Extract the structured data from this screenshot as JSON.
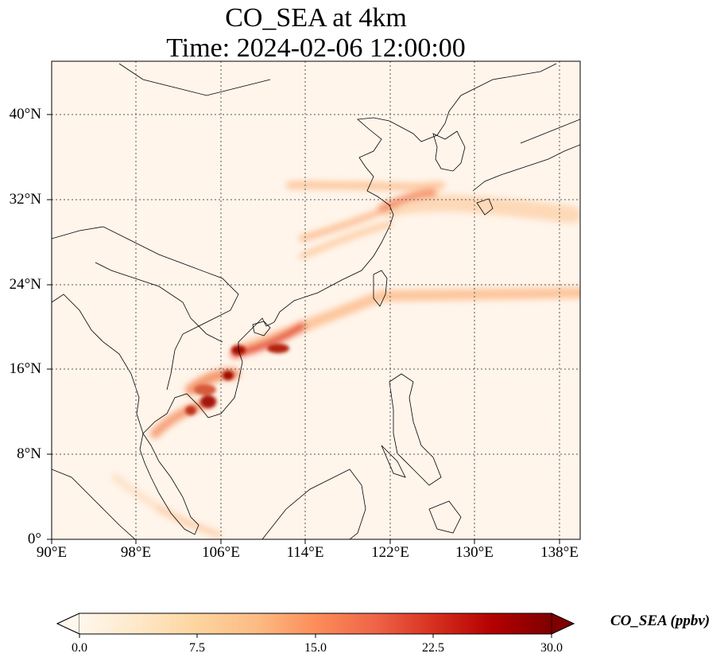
{
  "title": {
    "line1": "CO_SEA at 4km",
    "line2": "Time: 2024-02-06 12:00:00"
  },
  "map": {
    "projection": "PlateCarree",
    "lon_range": [
      90,
      140
    ],
    "lat_range": [
      0,
      45
    ],
    "gridlines": "dotted",
    "x_tick_labels": [
      "90°E",
      "98°E",
      "106°E",
      "114°E",
      "122°E",
      "130°E",
      "138°E"
    ],
    "x_tick_values": [
      90,
      98,
      106,
      114,
      122,
      130,
      138
    ],
    "y_tick_labels": [
      "40°N",
      "32°N",
      "24°N",
      "16°N",
      "8°N",
      "0°"
    ],
    "y_tick_values": [
      40,
      32,
      24,
      16,
      8,
      0
    ],
    "background_color": "#fff5eb"
  },
  "colorbar": {
    "label": "CO_SEA (ppbv)",
    "tick_labels": [
      "0.0",
      "7.5",
      "15.0",
      "22.5",
      "30.0"
    ],
    "tick_values": [
      0,
      7.5,
      15,
      22.5,
      30
    ],
    "extend": "both",
    "colormap": "OrRd",
    "colors": [
      "#fff7ec",
      "#fee8c8",
      "#fdd49e",
      "#fdbb84",
      "#fc8d59",
      "#ef6548",
      "#d7301f",
      "#b30000",
      "#7f0000"
    ]
  }
}
